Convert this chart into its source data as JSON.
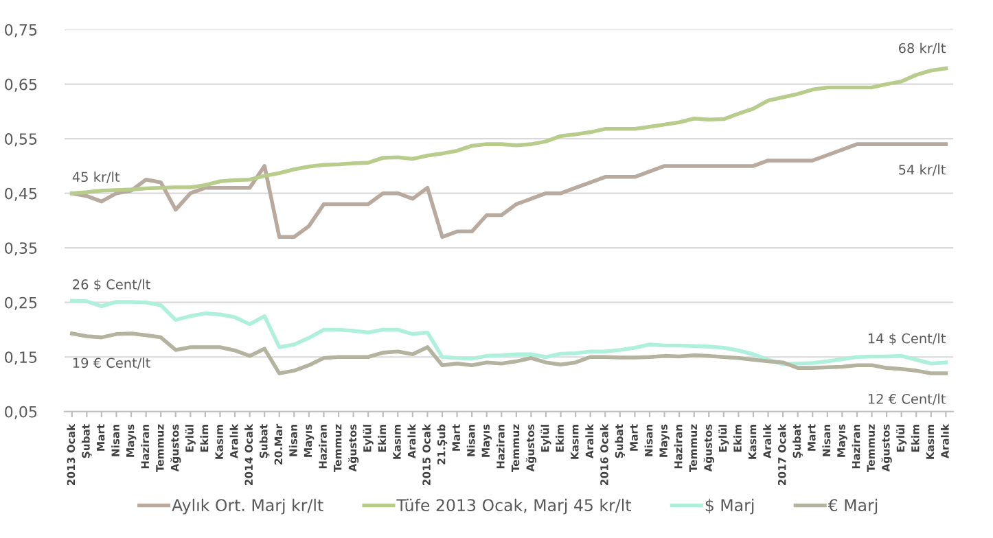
{
  "chart_data": {
    "type": "line",
    "categories": [
      "2013 Ocak",
      "Şubat",
      "Mart",
      "Nisan",
      "Mayıs",
      "Haziran",
      "Temmuz",
      "Ağustos",
      "Eylül",
      "Ekim",
      "Kasım",
      "Aralık",
      "2014 Ocak",
      "Şubat",
      "20.Mar",
      "Nisan",
      "Mayıs",
      "Haziran",
      "Temmuz",
      "Ağustos",
      "Eylül",
      "Ekim",
      "Kasım",
      "Aralık",
      "2015 Ocak",
      "21.Şub",
      "Mart",
      "Nisan",
      "Mayıs",
      "Haziran",
      "Temmuz",
      "Ağustos",
      "Eylül",
      "Ekim",
      "Kasım",
      "Aralık",
      "2016 Ocak",
      "Şubat",
      "Mart",
      "Nisan",
      "Mayıs",
      "Haziran",
      "Temmuz",
      "Ağustos",
      "Eylül",
      "Ekim",
      "Kasım",
      "Aralık",
      "2017 Ocak",
      "Şubat",
      "Mart",
      "Nisan",
      "Mayıs",
      "Haziran",
      "Temmuz",
      "Ağustos",
      "Eylül",
      "Ekim",
      "Kasım",
      "Aralık"
    ],
    "series": [
      {
        "name": "Aylık Ort. Marj kr/lt",
        "color": "#b9aaa0",
        "values": [
          0.45,
          0.445,
          0.435,
          0.45,
          0.455,
          0.475,
          0.47,
          0.42,
          0.45,
          0.46,
          0.46,
          0.46,
          0.46,
          0.5,
          0.37,
          0.37,
          0.39,
          0.43,
          0.43,
          0.43,
          0.43,
          0.45,
          0.45,
          0.44,
          0.46,
          0.37,
          0.38,
          0.38,
          0.41,
          0.41,
          0.43,
          0.44,
          0.45,
          0.45,
          0.46,
          0.47,
          0.48,
          0.48,
          0.48,
          0.49,
          0.5,
          0.5,
          0.5,
          0.5,
          0.5,
          0.5,
          0.5,
          0.51,
          0.51,
          0.51,
          0.51,
          0.52,
          0.53,
          0.54,
          0.54,
          0.54,
          0.54,
          0.54,
          0.54,
          0.54
        ]
      },
      {
        "name": "Tüfe 2013 Ocak, Marj 45 kr/lt",
        "color": "#b8cc8c",
        "values": [
          0.45,
          0.452,
          0.455,
          0.456,
          0.457,
          0.459,
          0.46,
          0.461,
          0.461,
          0.465,
          0.472,
          0.474,
          0.475,
          0.482,
          0.487,
          0.494,
          0.499,
          0.502,
          0.503,
          0.505,
          0.506,
          0.515,
          0.516,
          0.513,
          0.519,
          0.523,
          0.528,
          0.537,
          0.54,
          0.54,
          0.538,
          0.54,
          0.545,
          0.555,
          0.558,
          0.562,
          0.568,
          0.568,
          0.568,
          0.572,
          0.576,
          0.58,
          0.587,
          0.585,
          0.586,
          0.596,
          0.605,
          0.62,
          0.626,
          0.632,
          0.64,
          0.644,
          0.644,
          0.644,
          0.644,
          0.65,
          0.655,
          0.667,
          0.675,
          0.679
        ]
      },
      {
        "name": "$ Marj",
        "color": "#aef0dc",
        "values": [
          0.253,
          0.252,
          0.243,
          0.251,
          0.251,
          0.25,
          0.245,
          0.218,
          0.225,
          0.23,
          0.228,
          0.223,
          0.21,
          0.225,
          0.168,
          0.173,
          0.185,
          0.2,
          0.2,
          0.198,
          0.195,
          0.2,
          0.2,
          0.192,
          0.195,
          0.15,
          0.148,
          0.147,
          0.152,
          0.153,
          0.155,
          0.155,
          0.15,
          0.156,
          0.157,
          0.16,
          0.16,
          0.163,
          0.167,
          0.173,
          0.171,
          0.171,
          0.17,
          0.169,
          0.167,
          0.162,
          0.155,
          0.145,
          0.137,
          0.138,
          0.139,
          0.142,
          0.146,
          0.15,
          0.151,
          0.151,
          0.152,
          0.145,
          0.138,
          0.14
        ]
      },
      {
        "name": "€ Marj",
        "color": "#b3b3a0",
        "values": [
          0.193,
          0.188,
          0.186,
          0.192,
          0.193,
          0.19,
          0.186,
          0.163,
          0.168,
          0.168,
          0.168,
          0.162,
          0.152,
          0.165,
          0.12,
          0.125,
          0.135,
          0.148,
          0.15,
          0.15,
          0.15,
          0.158,
          0.16,
          0.155,
          0.168,
          0.135,
          0.138,
          0.135,
          0.14,
          0.138,
          0.142,
          0.148,
          0.14,
          0.136,
          0.14,
          0.15,
          0.15,
          0.149,
          0.149,
          0.15,
          0.152,
          0.151,
          0.153,
          0.152,
          0.15,
          0.148,
          0.145,
          0.142,
          0.14,
          0.13,
          0.13,
          0.131,
          0.132,
          0.135,
          0.135,
          0.13,
          0.128,
          0.125,
          0.12,
          0.12
        ]
      }
    ],
    "ylim": [
      0.05,
      0.75
    ],
    "yticks": [
      {
        "value": 0.05,
        "label": "0,05"
      },
      {
        "value": 0.15,
        "label": "0,15"
      },
      {
        "value": 0.25,
        "label": "0,25"
      },
      {
        "value": 0.35,
        "label": "0,35"
      },
      {
        "value": 0.45,
        "label": "0,45"
      },
      {
        "value": 0.55,
        "label": "0,55"
      },
      {
        "value": 0.65,
        "label": "0,65"
      },
      {
        "value": 0.75,
        "label": "0,75"
      }
    ],
    "grid": "y",
    "legend": "bottom",
    "marker": "none",
    "line_style": "solid",
    "annotations": [
      "45 kr/lt",
      "68 kr/lt",
      "54 kr/lt",
      "26 $ Cent/lt",
      "19 € Cent/lt",
      "14 $ Cent/lt",
      "12 € Cent/lt"
    ]
  }
}
